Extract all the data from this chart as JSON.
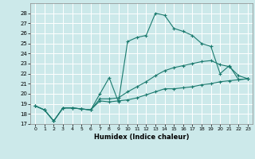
{
  "xlabel": "Humidex (Indice chaleur)",
  "bg_color": "#cce9ea",
  "grid_color": "#ffffff",
  "line_color": "#1a7a6e",
  "xlim": [
    -0.5,
    23.5
  ],
  "ylim": [
    17,
    29
  ],
  "xticks": [
    0,
    1,
    2,
    3,
    4,
    5,
    6,
    7,
    8,
    9,
    10,
    11,
    12,
    13,
    14,
    15,
    16,
    17,
    18,
    19,
    20,
    21,
    22,
    23
  ],
  "yticks": [
    17,
    18,
    19,
    20,
    21,
    22,
    23,
    24,
    25,
    26,
    27,
    28
  ],
  "line1_x": [
    0,
    1,
    2,
    3,
    4,
    5,
    6,
    7,
    8,
    9,
    10,
    11,
    12,
    13,
    14,
    15,
    16,
    17,
    18,
    19,
    20,
    21,
    22,
    23
  ],
  "line1_y": [
    18.8,
    18.4,
    17.3,
    18.6,
    18.6,
    18.5,
    18.4,
    20.0,
    21.6,
    19.2,
    25.2,
    25.6,
    25.8,
    28.0,
    27.8,
    26.5,
    26.2,
    25.8,
    25.0,
    24.7,
    22.0,
    22.8,
    21.4,
    21.5
  ],
  "line2_x": [
    0,
    1,
    2,
    3,
    4,
    5,
    6,
    7,
    8,
    9,
    10,
    11,
    12,
    13,
    14,
    15,
    16,
    17,
    18,
    19,
    20,
    21,
    22,
    23
  ],
  "line2_y": [
    18.8,
    18.4,
    17.3,
    18.6,
    18.6,
    18.5,
    18.4,
    19.3,
    19.2,
    19.3,
    19.4,
    19.6,
    19.9,
    20.2,
    20.5,
    20.5,
    20.6,
    20.7,
    20.9,
    21.0,
    21.2,
    21.3,
    21.4,
    21.5
  ],
  "line3_x": [
    0,
    1,
    2,
    3,
    4,
    5,
    6,
    7,
    8,
    9,
    10,
    11,
    12,
    13,
    14,
    15,
    16,
    17,
    18,
    19,
    20,
    21,
    22,
    23
  ],
  "line3_y": [
    18.8,
    18.4,
    17.3,
    18.6,
    18.6,
    18.5,
    18.4,
    19.5,
    19.5,
    19.6,
    20.2,
    20.7,
    21.2,
    21.8,
    22.3,
    22.6,
    22.8,
    23.0,
    23.2,
    23.3,
    22.9,
    22.7,
    21.8,
    21.5
  ]
}
